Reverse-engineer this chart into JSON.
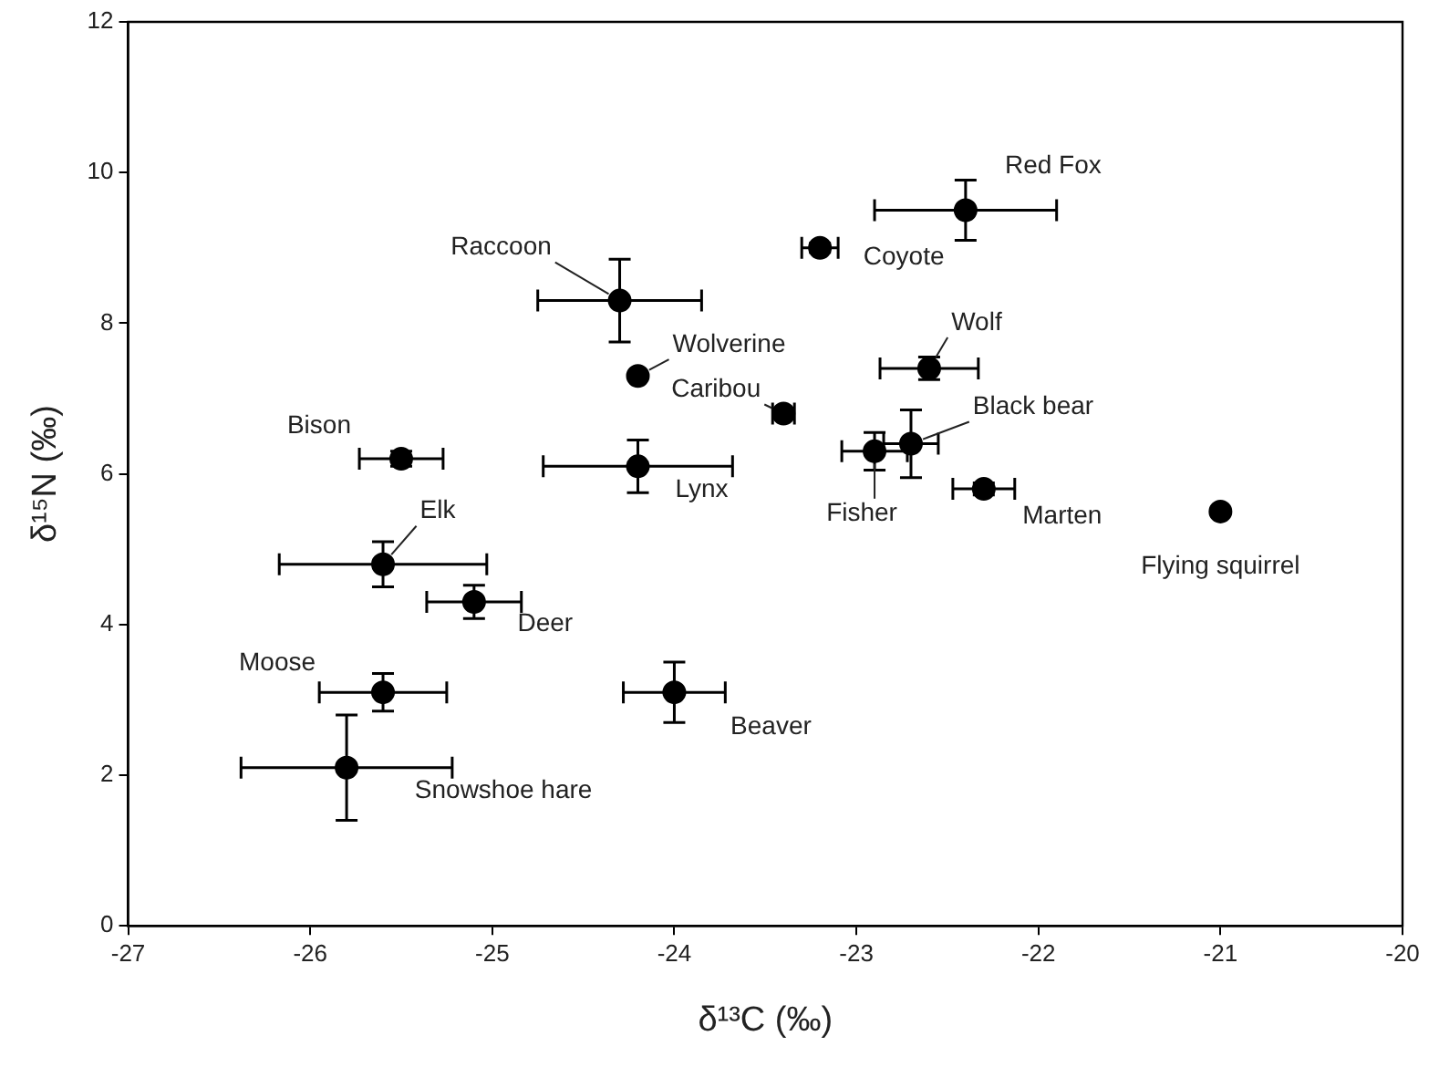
{
  "chart_data": {
    "type": "scatter",
    "xlabel": "δ¹³C (‰)",
    "ylabel": "δ¹⁵N (‰)",
    "marker": "circle",
    "grid": false,
    "legend": false,
    "xlim": [
      -27,
      -20
    ],
    "xticks": [
      -27,
      -26,
      -25,
      -24,
      -23,
      -22,
      -21,
      -20
    ],
    "ylim": [
      0,
      12
    ],
    "yticks": [
      0,
      2,
      4,
      6,
      8,
      10,
      12
    ],
    "series": [
      {
        "color": "#000000",
        "x": [
          -22.4,
          -23.2,
          -24.3,
          -24.2,
          -23.4,
          -22.6,
          -22.7,
          -22.9,
          -25.5,
          -24.2,
          -22.3,
          -21.0,
          -25.6,
          -25.1,
          -25.6,
          -24.0,
          -25.8
        ],
        "values": [
          9.5,
          9.0,
          8.3,
          7.3,
          6.8,
          7.4,
          6.4,
          6.3,
          6.2,
          6.1,
          5.8,
          5.5,
          4.8,
          4.3,
          3.1,
          3.1,
          2.1
        ],
        "xerrors": [
          0.5,
          0.1,
          0.45,
          null,
          0.06,
          0.27,
          0.15,
          0.18,
          0.23,
          0.52,
          0.17,
          null,
          0.57,
          0.26,
          0.35,
          0.28,
          0.58
        ],
        "errors": [
          0.4,
          0.06,
          0.55,
          null,
          0.06,
          0.15,
          0.45,
          0.25,
          0.1,
          0.35,
          0.08,
          null,
          0.3,
          0.22,
          0.25,
          0.4,
          0.7
        ]
      }
    ],
    "annotations": [
      {
        "text": "Red Fox",
        "x": -22.4,
        "y": 9.5
      },
      {
        "text": "Coyote",
        "x": -23.2,
        "y": 9.0
      },
      {
        "text": "Raccoon",
        "x": -24.3,
        "y": 8.3
      },
      {
        "text": "Wolverine",
        "x": -24.2,
        "y": 7.3
      },
      {
        "text": "Caribou",
        "x": -23.4,
        "y": 6.8
      },
      {
        "text": "Wolf",
        "x": -22.6,
        "y": 7.4
      },
      {
        "text": "Black bear",
        "x": -22.7,
        "y": 6.4
      },
      {
        "text": "Fisher",
        "x": -22.9,
        "y": 6.3
      },
      {
        "text": "Bison",
        "x": -25.5,
        "y": 6.2
      },
      {
        "text": "Lynx",
        "x": -24.2,
        "y": 6.1
      },
      {
        "text": "Marten",
        "x": -22.3,
        "y": 5.8
      },
      {
        "text": "Flying squirrel",
        "x": -21.0,
        "y": 5.5
      },
      {
        "text": "Elk",
        "x": -25.6,
        "y": 4.8
      },
      {
        "text": "Deer",
        "x": -25.1,
        "y": 4.3
      },
      {
        "text": "Moose",
        "x": -25.6,
        "y": 3.1
      },
      {
        "text": "Beaver",
        "x": -24.0,
        "y": 3.1
      },
      {
        "text": "Snowshoe hare",
        "x": -25.8,
        "y": 2.1
      }
    ]
  }
}
